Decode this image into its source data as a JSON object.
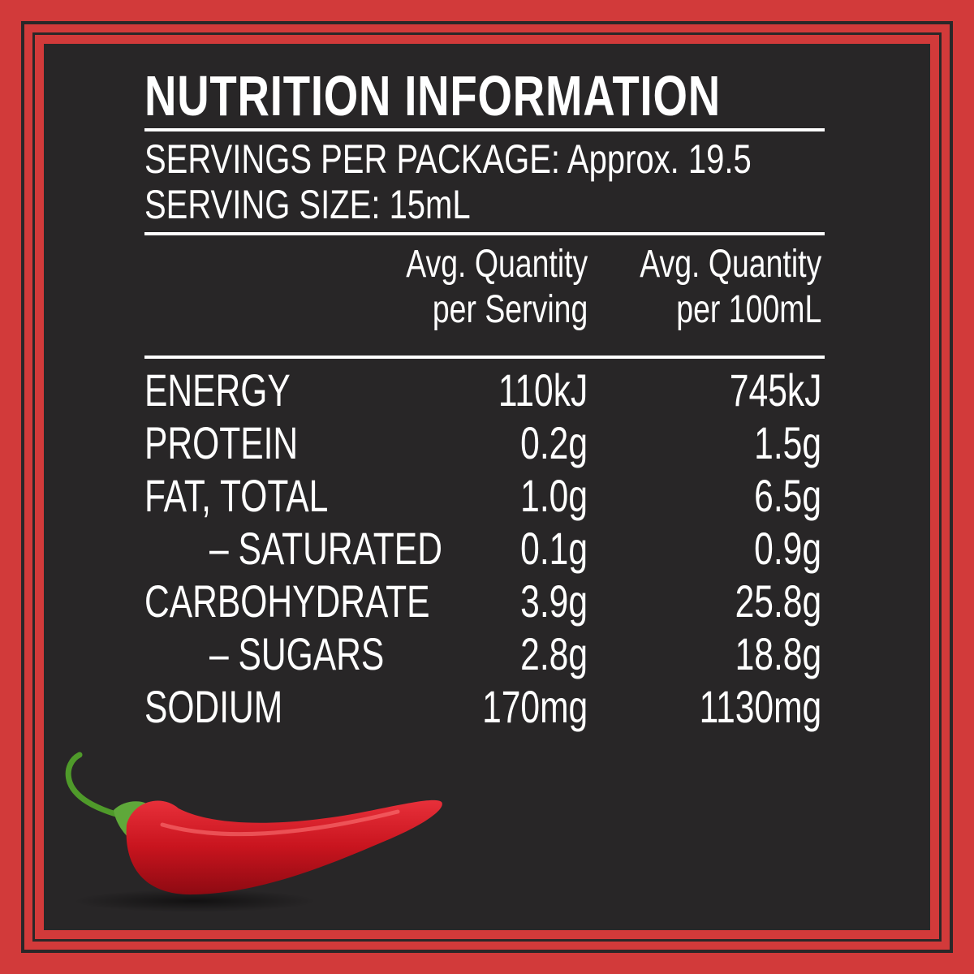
{
  "panel": {
    "title": "NUTRITION INFORMATION",
    "servings_per_package": "SERVINGS PER PACKAGE: Approx. 19.5",
    "serving_size": "SERVING SIZE: 15mL",
    "column_headers": [
      {
        "line1": "Avg. Quantity",
        "line2": "per Serving"
      },
      {
        "line1": "Avg. Quantity",
        "line2": "per 100mL"
      }
    ],
    "rows": [
      {
        "name": "ENERGY",
        "per_serving": "110kJ",
        "per_100ml": "745kJ"
      },
      {
        "name": "PROTEIN",
        "per_serving": "0.2g",
        "per_100ml": "1.5g"
      },
      {
        "name": "FAT, TOTAL",
        "per_serving": "1.0g",
        "per_100ml": "6.5g"
      },
      {
        "name": "– SATURATED",
        "per_serving": "0.1g",
        "per_100ml": "0.9g"
      },
      {
        "name": "CARBOHYDRATE",
        "per_serving": "3.9g",
        "per_100ml": "25.8g"
      },
      {
        "name": "– SUGARS",
        "per_serving": "2.8g",
        "per_100ml": "18.8g"
      },
      {
        "name": "SODIUM",
        "per_serving": "170mg",
        "per_100ml": "1130mg"
      }
    ]
  },
  "colors": {
    "border_red": "#d23a3a",
    "panel_dark": "#282627",
    "text": "#ffffff",
    "chili_red": "#c8141e",
    "stem_green": "#4f9a2a"
  },
  "decoration": {
    "image_icon": "chili-pepper-icon"
  }
}
